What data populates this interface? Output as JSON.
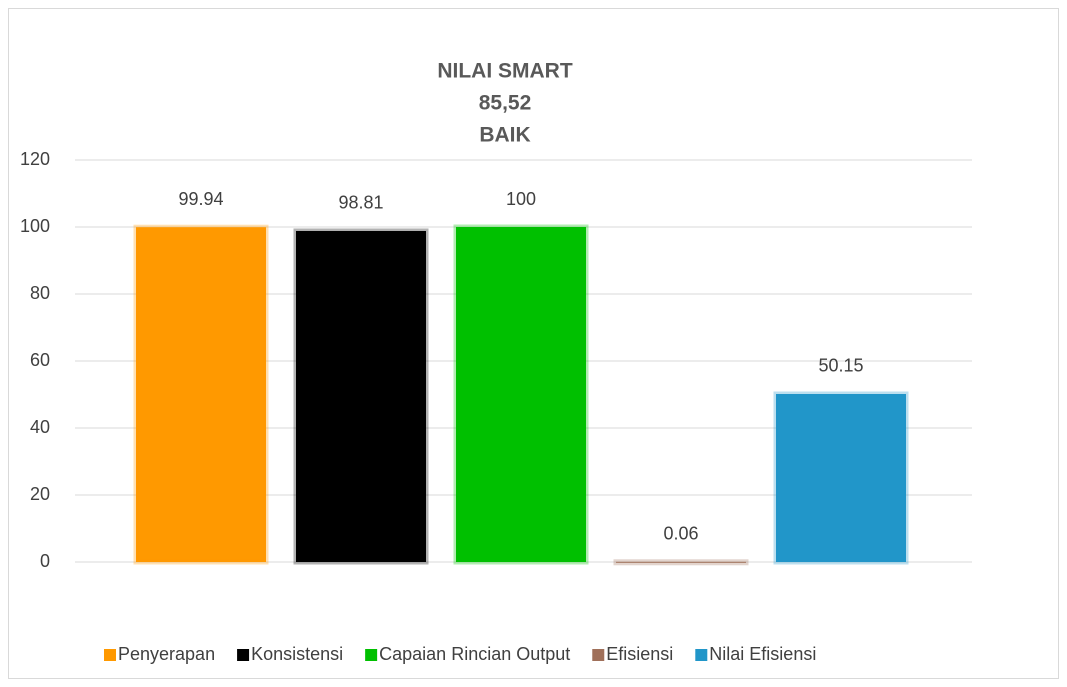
{
  "chart_data": {
    "type": "bar",
    "title": [
      "NILAI SMART",
      "85,52",
      "BAIK"
    ],
    "categories": [
      null
    ],
    "series": [
      {
        "name": "Penyerapan",
        "color": "#ff9900",
        "values": [
          99.94
        ]
      },
      {
        "name": "Konsistensi",
        "color": "#000000",
        "values": [
          98.81
        ]
      },
      {
        "name": "Capaian Rincian Output",
        "color": "#00c000",
        "values": [
          100
        ]
      },
      {
        "name": "Efisiensi",
        "color": "#a0705a",
        "values": [
          0.06
        ]
      },
      {
        "name": "Nilai Efisiensi",
        "color": "#2196c9",
        "values": [
          50.15
        ]
      }
    ],
    "ylim": [
      0,
      120
    ],
    "yticks": [
      0,
      20,
      40,
      60,
      80,
      100,
      120
    ],
    "grid": true,
    "legend": "bottom"
  }
}
